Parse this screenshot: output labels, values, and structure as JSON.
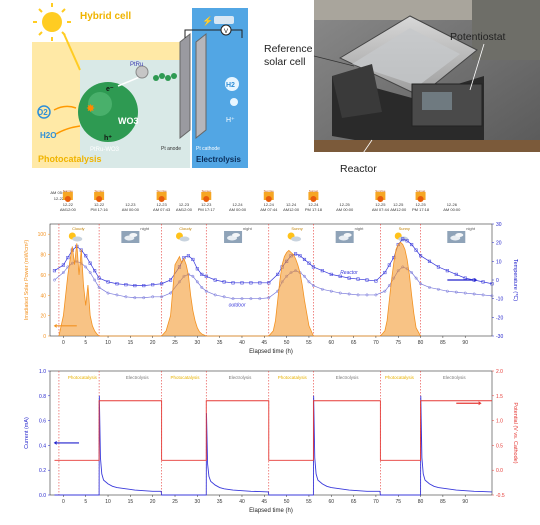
{
  "hybrid": {
    "hybrid_label": "Hybrid cell",
    "photocat_label": "Photocatalysis",
    "electrolysis_label": "Electrolysis",
    "wo3_label": "WO3",
    "ptru_label": "PtRu",
    "ptru_wo3_label": "PtRu-WO3",
    "e_label": "e⁻",
    "h_label": "h⁺",
    "o2_label": "O2",
    "h2o_label": "H2O",
    "pt_anode_label": "Pt anode",
    "pt_cathode_label": "Pt cathode",
    "v_label": "V",
    "h2_label": "H2",
    "hplus_label": "H⁺"
  },
  "photo": {
    "reference_label": "Reference\nsolar cell",
    "potentiostat_label": "Potentiostat",
    "reactor_label": "Reactor"
  },
  "chart_data": [
    {
      "type": "line",
      "xlabel": "Elapsed time (h)",
      "ylabel": "Irradiated Solar Power (mW/cm²)",
      "y2label": "Temperature (℃)",
      "xlim": [
        -3,
        96
      ],
      "ylim": [
        0,
        110
      ],
      "y2lim": [
        -30,
        30
      ],
      "x_ticks": [
        0,
        5,
        10,
        15,
        20,
        25,
        30,
        35,
        40,
        45,
        50,
        55,
        60,
        65,
        70,
        75,
        80,
        85,
        90
      ],
      "y_ticks": [
        0,
        20,
        40,
        60,
        80,
        100
      ],
      "y2_ticks": [
        -30,
        -20,
        -10,
        0,
        10,
        20,
        30
      ],
      "annotations": [
        "Reactor",
        "outdoor"
      ],
      "day_windows": [
        [
          -1,
          8
        ],
        [
          22,
          32
        ],
        [
          46,
          56
        ],
        [
          71,
          80
        ]
      ],
      "top_events": [
        {
          "x": -1,
          "date": "12-22",
          "time": "AM 05:30",
          "icon": "none",
          "above": true
        },
        {
          "x": 1,
          "date": "12-22",
          "time": "AM12:00",
          "icon": "sunrise"
        },
        {
          "x": 8,
          "date": "12-22",
          "time": "PM 17:16",
          "icon": "sunset"
        },
        {
          "x": 15,
          "date": "12-23",
          "time": "AM 00:00",
          "icon": "none"
        },
        {
          "x": 22,
          "date": "12-23",
          "time": "AM 07:43",
          "icon": "sunrise"
        },
        {
          "x": 27,
          "date": "12-23",
          "time": "AM12:00",
          "icon": "none"
        },
        {
          "x": 32,
          "date": "12-23",
          "time": "PM 17:17",
          "icon": "sunset"
        },
        {
          "x": 39,
          "date": "12-24",
          "time": "AM 00:00",
          "icon": "none"
        },
        {
          "x": 46,
          "date": "12-24",
          "time": "AM 07:44",
          "icon": "sunrise"
        },
        {
          "x": 51,
          "date": "12-24",
          "time": "AM12:00",
          "icon": "none"
        },
        {
          "x": 56,
          "date": "12-24",
          "time": "PM 17:18",
          "icon": "sunset"
        },
        {
          "x": 63,
          "date": "12-25",
          "time": "AM 00:00",
          "icon": "none"
        },
        {
          "x": 71,
          "date": "12-25",
          "time": "AM 07:44",
          "icon": "sunrise"
        },
        {
          "x": 75,
          "date": "12-25",
          "time": "AM12:00",
          "icon": "none"
        },
        {
          "x": 80,
          "date": "12-25",
          "time": "PM 17:18",
          "icon": "sunset"
        },
        {
          "x": 87,
          "date": "12-26",
          "time": "AM 00:00",
          "icon": "none"
        }
      ],
      "event_icon_labels": {
        "sunrise": "Sunrise",
        "sunset": "Sunset"
      },
      "weather": [
        {
          "x": 2,
          "label": "Cloudy",
          "kind": "sun"
        },
        {
          "x": 15,
          "label": "night",
          "kind": "night"
        },
        {
          "x": 26,
          "label": "Cloudy",
          "kind": "sun"
        },
        {
          "x": 38,
          "label": "night",
          "kind": "night"
        },
        {
          "x": 51,
          "label": "Sunny",
          "kind": "sun"
        },
        {
          "x": 63,
          "label": "night",
          "kind": "night"
        },
        {
          "x": 75,
          "label": "Sunny",
          "kind": "sun"
        },
        {
          "x": 88,
          "label": "night",
          "kind": "night"
        }
      ],
      "series": [
        {
          "name": "Reactor",
          "axis": "right",
          "color": "#3a3adb",
          "marker": "square",
          "x": [
            -2,
            0,
            1,
            2,
            3,
            4,
            5,
            6,
            7,
            8,
            10,
            12,
            14,
            16,
            18,
            20,
            22,
            24,
            26,
            27,
            28,
            29,
            30,
            31,
            32,
            34,
            36,
            38,
            40,
            42,
            44,
            46,
            48,
            49,
            50,
            51,
            52,
            53,
            54,
            55,
            56,
            58,
            60,
            62,
            64,
            66,
            68,
            70,
            72,
            73,
            74,
            75,
            76,
            77,
            78,
            79,
            80,
            82,
            84,
            86,
            88,
            90,
            92,
            94,
            96
          ],
          "y": [
            5,
            8,
            12,
            16,
            18,
            16,
            13,
            9,
            5,
            1,
            -1,
            -2,
            -2.5,
            -3,
            -3,
            -2.5,
            -2,
            0,
            7,
            12,
            13,
            11,
            6,
            3,
            2,
            0,
            -1,
            -1.5,
            -1.5,
            -1.5,
            -1.5,
            -1.5,
            3,
            7,
            10,
            13,
            14,
            13,
            11,
            9,
            7,
            5,
            3,
            2,
            1,
            0.5,
            0,
            -0.5,
            4,
            8,
            12,
            19,
            22,
            21,
            19,
            16,
            13,
            10,
            7,
            5,
            3,
            1,
            0,
            -1,
            -2
          ]
        },
        {
          "name": "outdoor",
          "axis": "right",
          "color": "#7a7adb",
          "marker": "circle",
          "x": [
            -2,
            0,
            1,
            2,
            3,
            4,
            5,
            6,
            7,
            8,
            10,
            12,
            14,
            16,
            18,
            20,
            22,
            24,
            26,
            27,
            28,
            29,
            30,
            31,
            32,
            34,
            36,
            38,
            40,
            42,
            44,
            46,
            48,
            49,
            50,
            51,
            52,
            53,
            54,
            55,
            56,
            58,
            60,
            62,
            64,
            66,
            68,
            70,
            72,
            73,
            74,
            75,
            76,
            77,
            78,
            79,
            80,
            82,
            84,
            86,
            88,
            90,
            92,
            94,
            96
          ],
          "y": [
            0,
            4,
            7,
            9,
            10,
            9,
            7,
            4,
            0,
            -4,
            -7,
            -8,
            -9,
            -9.5,
            -9.5,
            -9,
            -9,
            -7,
            -1,
            2,
            3,
            2,
            -1,
            -4,
            -6,
            -8,
            -9,
            -10,
            -10,
            -10,
            -10,
            -9.5,
            -6,
            -1,
            2,
            4,
            5,
            4,
            2,
            -1,
            -3,
            -5,
            -6,
            -7,
            -7.5,
            -8,
            -8,
            -8,
            -6,
            -3,
            1,
            5,
            7,
            6,
            4,
            1,
            -2,
            -4,
            -5,
            -6,
            -6.5,
            -7,
            -7.5,
            -8,
            -8.5
          ]
        },
        {
          "name": "Irradiated Solar Power",
          "axis": "left",
          "color": "#f39221",
          "marker": "none",
          "x": [
            -1,
            0,
            0.5,
            1,
            1.5,
            2,
            2.5,
            3,
            3.5,
            4,
            4.5,
            5,
            5.5,
            6,
            6.5,
            7,
            7.5,
            8,
            22,
            23,
            24,
            24.5,
            25,
            25.5,
            26,
            26.5,
            27,
            27.5,
            28,
            28.5,
            29,
            29.5,
            30,
            30.5,
            31,
            32,
            46,
            47,
            47.5,
            48,
            48.5,
            49,
            49.5,
            50,
            50.5,
            51,
            51.5,
            52,
            52.5,
            53,
            53.5,
            54,
            55,
            56,
            71,
            72,
            72.5,
            73,
            73.5,
            74,
            74.5,
            75,
            75.5,
            76,
            76.5,
            77,
            77.5,
            78,
            78.5,
            79,
            80
          ],
          "y": [
            0,
            20,
            40,
            60,
            75,
            88,
            70,
            91,
            60,
            85,
            50,
            30,
            50,
            20,
            10,
            5,
            2,
            0,
            0,
            5,
            20,
            45,
            70,
            74,
            78,
            72,
            76,
            70,
            60,
            40,
            25,
            15,
            8,
            4,
            2,
            0,
            0,
            5,
            15,
            35,
            55,
            70,
            78,
            82,
            84,
            82,
            80,
            76,
            70,
            62,
            50,
            35,
            10,
            0,
            0,
            5,
            15,
            35,
            55,
            72,
            85,
            90,
            92,
            90,
            85,
            75,
            60,
            40,
            22,
            8,
            0
          ]
        }
      ]
    },
    {
      "type": "line",
      "xlabel": "Elapsed time (h)",
      "ylabel": "Current (mA)",
      "y2label": "Potential (V vs. Cathode)",
      "xlim": [
        -3,
        96
      ],
      "ylim": [
        0,
        1.0
      ],
      "y2lim": [
        -0.5,
        2.0
      ],
      "x_ticks": [
        0,
        5,
        10,
        15,
        20,
        25,
        30,
        35,
        40,
        45,
        50,
        55,
        60,
        65,
        70,
        75,
        80,
        85,
        90
      ],
      "y_ticks": [
        0,
        0.2,
        0.4,
        0.6,
        0.8,
        1.0
      ],
      "y2_ticks": [
        -0.5,
        0.0,
        0.5,
        1.0,
        1.5,
        2.0
      ],
      "phase_labels": [
        {
          "x": 1,
          "label": "Photocatalysis",
          "photo": true
        },
        {
          "x": 14,
          "label": "Electrolysis",
          "photo": false
        },
        {
          "x": 24,
          "label": "Photocatalysis",
          "photo": true
        },
        {
          "x": 37,
          "label": "Electrolysis",
          "photo": false
        },
        {
          "x": 48,
          "label": "Photocatalysis",
          "photo": true
        },
        {
          "x": 61,
          "label": "Electrolysis",
          "photo": false
        },
        {
          "x": 72,
          "label": "Photocatalysis",
          "photo": true
        },
        {
          "x": 85,
          "label": "Electrolysis",
          "photo": false
        }
      ],
      "boundaries": [
        -1,
        8,
        22,
        32,
        46,
        56,
        71,
        80
      ],
      "series": [
        {
          "name": "Current",
          "axis": "left",
          "color": "#3a3adb",
          "marker": "none",
          "x": [
            -2,
            8,
            8.05,
            8.3,
            8.6,
            9,
            10,
            11,
            12,
            14,
            16,
            18,
            20,
            21.9,
            22,
            32,
            32.05,
            32.3,
            32.6,
            33,
            34,
            35,
            36,
            38,
            40,
            42,
            44,
            45.9,
            46,
            56,
            56.05,
            56.3,
            56.6,
            57,
            58,
            59,
            60,
            62,
            64,
            66,
            68,
            70.9,
            71,
            80,
            80.05,
            80.3,
            80.6,
            81,
            82,
            83,
            84,
            86,
            88,
            90,
            92,
            94,
            96
          ],
          "y": [
            0,
            0,
            0.8,
            0.3,
            0.17,
            0.12,
            0.09,
            0.07,
            0.06,
            0.05,
            0.04,
            0.035,
            0.03,
            0.03,
            0,
            0,
            0.66,
            0.25,
            0.15,
            0.11,
            0.08,
            0.06,
            0.05,
            0.04,
            0.035,
            0.03,
            0.028,
            0.025,
            0,
            0,
            0.8,
            0.3,
            0.17,
            0.12,
            0.09,
            0.07,
            0.06,
            0.05,
            0.04,
            0.035,
            0.03,
            0.03,
            0,
            0,
            0.8,
            0.3,
            0.17,
            0.12,
            0.09,
            0.07,
            0.06,
            0.05,
            0.04,
            0.035,
            0.03,
            0.028,
            0.025
          ]
        },
        {
          "name": "Potential",
          "axis": "right",
          "color": "#e53935",
          "marker": "none",
          "x": [
            -2,
            8,
            8,
            22,
            22,
            32,
            32,
            46,
            46,
            56,
            56,
            71,
            71,
            80,
            80,
            96
          ],
          "y": [
            0.2,
            0.2,
            1.4,
            1.4,
            0.2,
            0.2,
            1.4,
            1.4,
            0.2,
            0.2,
            1.4,
            1.4,
            0.2,
            0.2,
            1.4,
            1.4
          ]
        }
      ]
    }
  ]
}
